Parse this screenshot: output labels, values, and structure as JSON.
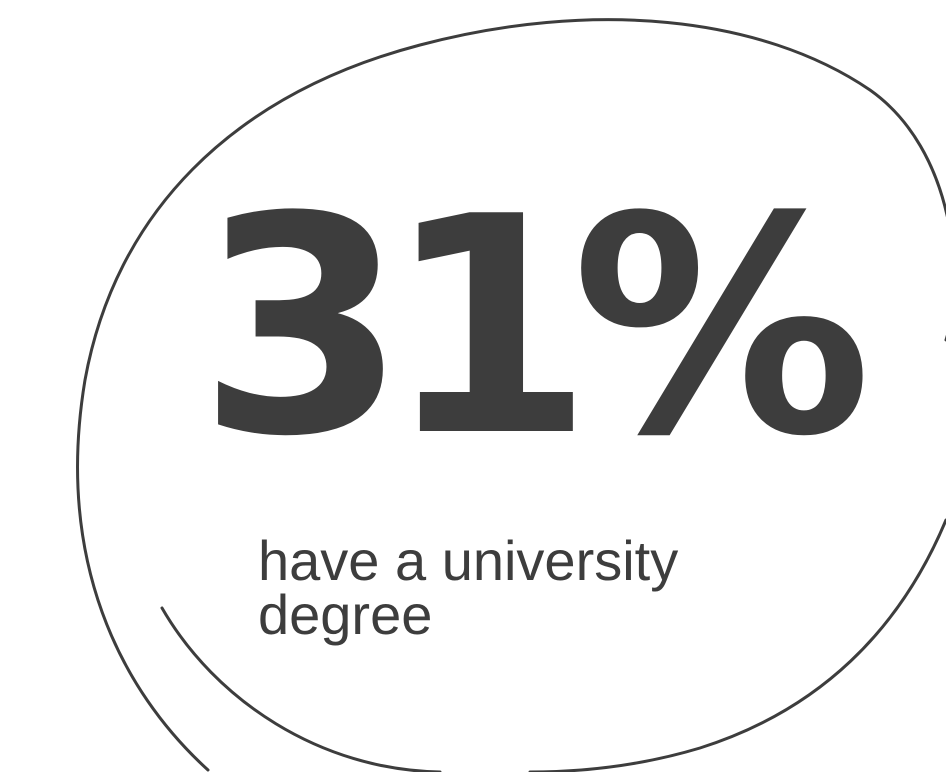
{
  "stat": {
    "value": "31%",
    "caption": "have a university degree"
  },
  "colors": {
    "text": "#3d3d3d",
    "outline": "#3d3d3d",
    "background": "#ffffff"
  }
}
